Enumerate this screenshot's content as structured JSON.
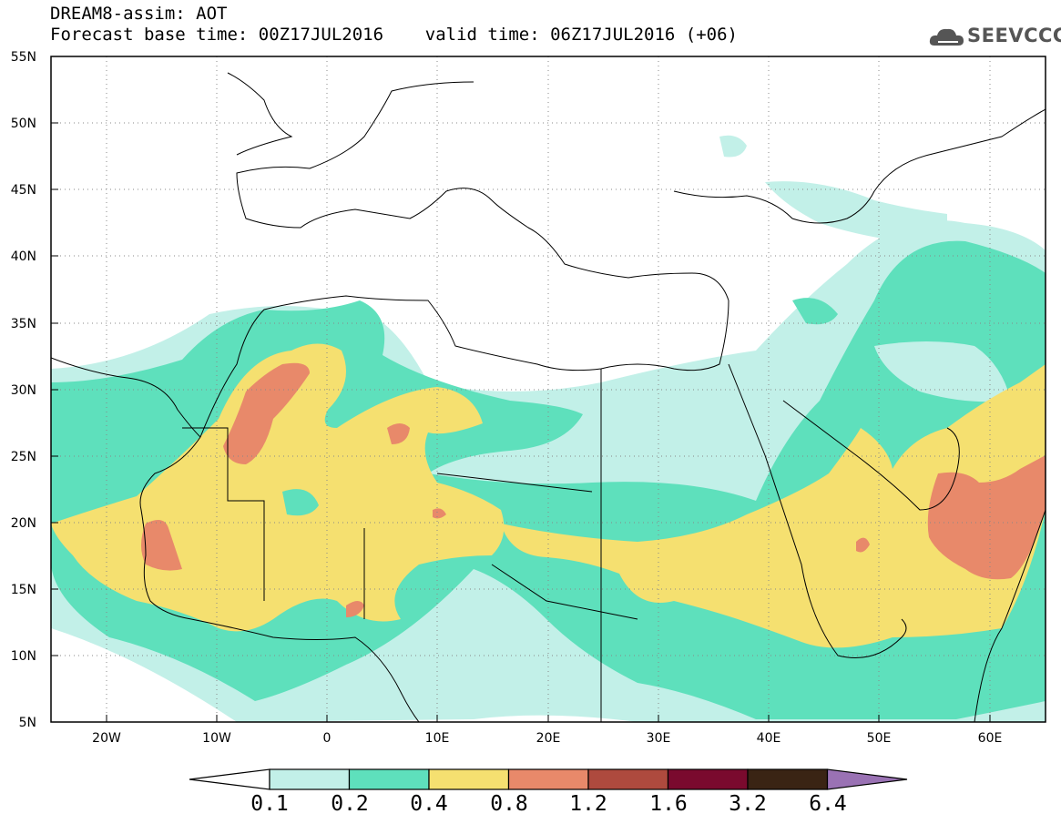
{
  "header": {
    "line1": "DREAM8-assim: AOT",
    "line2": "Forecast base time: 00Z17JUL2016    valid time: 06Z17JUL2016 (+06)",
    "logo": "SEEVCCC",
    "logo_icon": "cloud-icon"
  },
  "map": {
    "lat_labels": [
      "55N",
      "50N",
      "45N",
      "40N",
      "35N",
      "30N",
      "25N",
      "20N",
      "15N",
      "10N",
      "5N"
    ],
    "lon_labels": [
      "20W",
      "10W",
      "0",
      "10E",
      "20E",
      "30E",
      "40E",
      "50E",
      "60E"
    ],
    "lat_range": [
      5,
      55
    ],
    "lon_range": [
      -25,
      65
    ],
    "grid": "dotted"
  },
  "colorbar": {
    "labels": [
      "0.1",
      "0.2",
      "0.4",
      "0.8",
      "1.2",
      "1.6",
      "3.2",
      "6.4"
    ],
    "colors": [
      "#ffffff",
      "#c2f0e8",
      "#5ee0bc",
      "#f5e070",
      "#e8896a",
      "#ae4a3e",
      "#7a0a2e",
      "#3a2414",
      "#9a72b4"
    ]
  }
}
